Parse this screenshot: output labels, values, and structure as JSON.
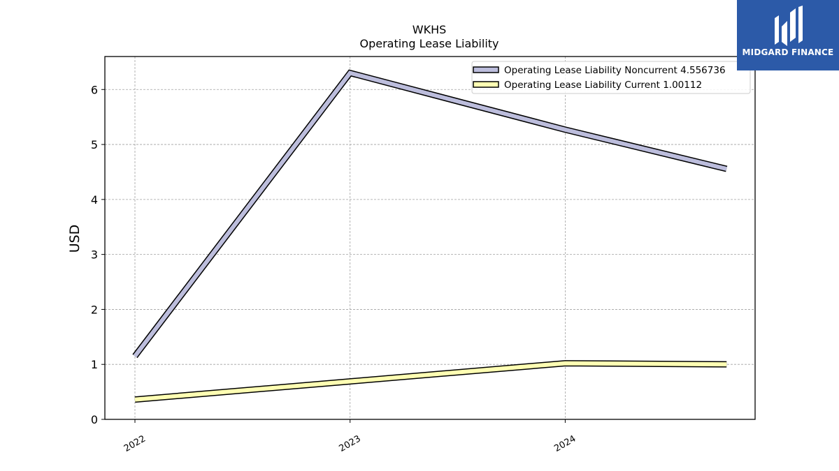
{
  "chart_data": {
    "type": "line",
    "title": "WKHS",
    "subtitle": "Operating Lease Liability",
    "xlabel": "",
    "ylabel": "USD",
    "x": [
      2022.0,
      2023.0,
      2024.0,
      2024.75
    ],
    "x_tick_labels": [
      "2022",
      "2023",
      "2024"
    ],
    "x_ticks": [
      2022,
      2023,
      2024
    ],
    "ylim": [
      0,
      6.6
    ],
    "y_ticks": [
      0,
      1,
      2,
      3,
      4,
      5,
      6
    ],
    "grid": true,
    "legend_position": "top-right",
    "series": [
      {
        "name": "Operating Lease Liability Noncurrent  4.556736",
        "color": "#bcbddc",
        "values": [
          1.15,
          6.3,
          5.27,
          4.556736
        ]
      },
      {
        "name": "Operating Lease Liability Current  1.00112",
        "color": "#ffffb3",
        "values": [
          0.36,
          0.69,
          1.02,
          1.00112
        ]
      }
    ]
  },
  "branding": {
    "logo_text": "MIDGARD FINANCE",
    "logo_color": "#2c5aa8"
  }
}
